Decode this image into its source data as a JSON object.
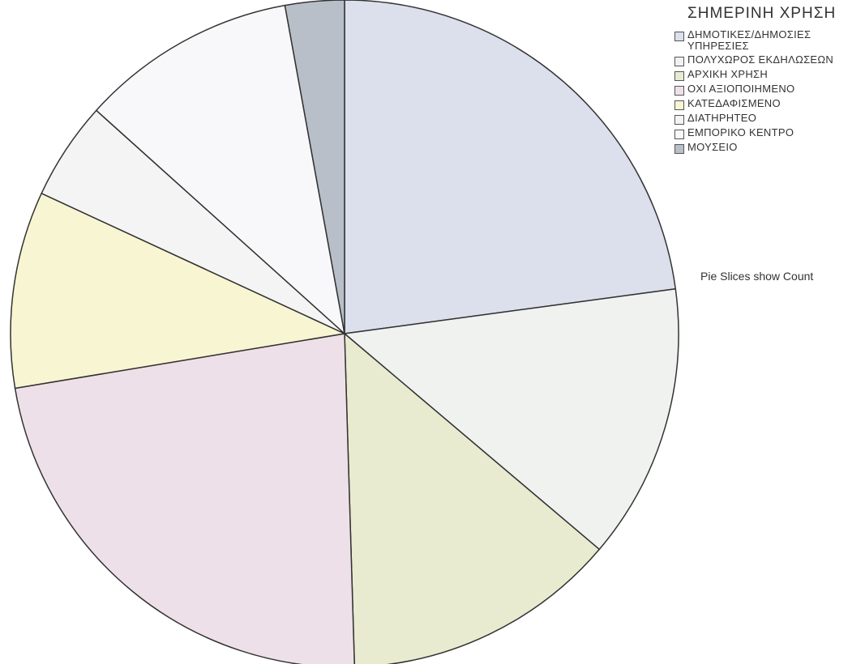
{
  "chart_data": {
    "type": "pie",
    "title": "",
    "legend_title": "ΣΗΜΕΡΙΝΗ ΧΡΗΣΗ",
    "legend_position": "top-right",
    "footnote": "Pie Slices show Count",
    "slices": [
      {
        "label": "ΔΗΜΟΤΙΚΕΣ/ΔΗΜΟΣΙΕΣ ΥΠΗΡΕΣΙΕΣ",
        "value": 24,
        "color": "#dcdfec"
      },
      {
        "label": "ΠΟΛΥΧΩΡΟΣ ΕΚΔΗΛΩΣΕΩΝ",
        "value": 14,
        "color": "#f0f2f0"
      },
      {
        "label": "ΑΡΧΙΚΗ ΧΡΗΣΗ",
        "value": 14,
        "color": "#e8ebd0"
      },
      {
        "label": "ΟΧΙ ΑΞΙΟΠΟΙΗΜΕΝΟ",
        "value": 24,
        "color": "#eee0e8"
      },
      {
        "label": "ΚΑΤΕΔΑΦΙΣΜΕΝΟ",
        "value": 10,
        "color": "#f8f5d2"
      },
      {
        "label": "ΔΙΑΤΗΡΗΤΕΟ",
        "value": 5,
        "color": "#f4f4f4"
      },
      {
        "label": "ΕΜΠΟΡΙΚΟ ΚΕΝΤΡΟ",
        "value": 11,
        "color": "#f8f8fa"
      },
      {
        "label": "ΜΟΥΣΕΙΟ",
        "value": 3,
        "color": "#b8bfc8"
      }
    ]
  }
}
